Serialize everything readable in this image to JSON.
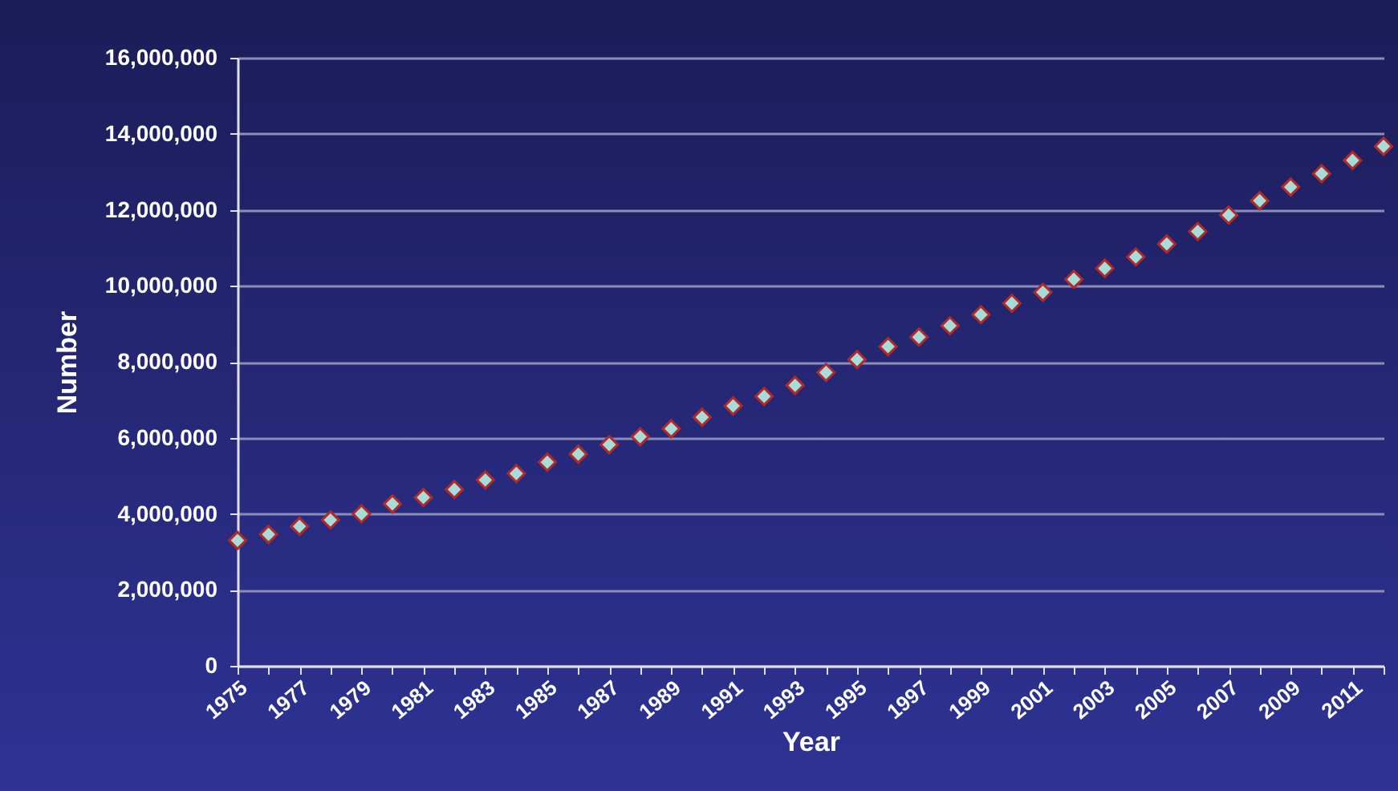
{
  "chart_data": {
    "type": "scatter",
    "xlabel": "Year",
    "ylabel": "Number",
    "categories": [
      "1975",
      null,
      "1977",
      null,
      "1979",
      null,
      "1981",
      null,
      "1983",
      null,
      "1985",
      null,
      "1987",
      null,
      "1989",
      null,
      "1991",
      null,
      "1993",
      null,
      "1995",
      null,
      "1997",
      null,
      "1999",
      null,
      "2001",
      null,
      "2003",
      null,
      "2005",
      null,
      "2007",
      null,
      "2009",
      null,
      "2011",
      null
    ],
    "series": [
      {
        "color": "#a8dcd8",
        "values": [
          3300000,
          3460000,
          3670000,
          3840000,
          4000000,
          4260000,
          4430000,
          4640000,
          4890000,
          5060000,
          5360000,
          5570000,
          5820000,
          6030000,
          6240000,
          6540000,
          6840000,
          7090000,
          7380000,
          7720000,
          8060000,
          8400000,
          8650000,
          8950000,
          9240000,
          9540000,
          9830000,
          10170000,
          10460000,
          10760000,
          11100000,
          11430000,
          11860000,
          12240000,
          12600000,
          12950000,
          13300000,
          13670000
        ]
      }
    ],
    "ylim": [
      0,
      16000000
    ],
    "yticks": [
      0,
      {
        "value": 2000000,
        "label": "2,000,000"
      },
      {
        "value": 4000000,
        "label": "4,000,000"
      },
      {
        "value": 6000000,
        "label": "6,000,000"
      },
      {
        "value": 8000000,
        "label": "8,000,000"
      },
      {
        "value": 10000000,
        "label": "10,000,000"
      },
      {
        "value": 12000000,
        "label": "12,000,000"
      },
      {
        "value": 14000000,
        "label": "14,000,000"
      },
      {
        "value": 16000000,
        "label": "16,000,000"
      }
    ],
    "grid": "y",
    "marker": "diamond"
  }
}
